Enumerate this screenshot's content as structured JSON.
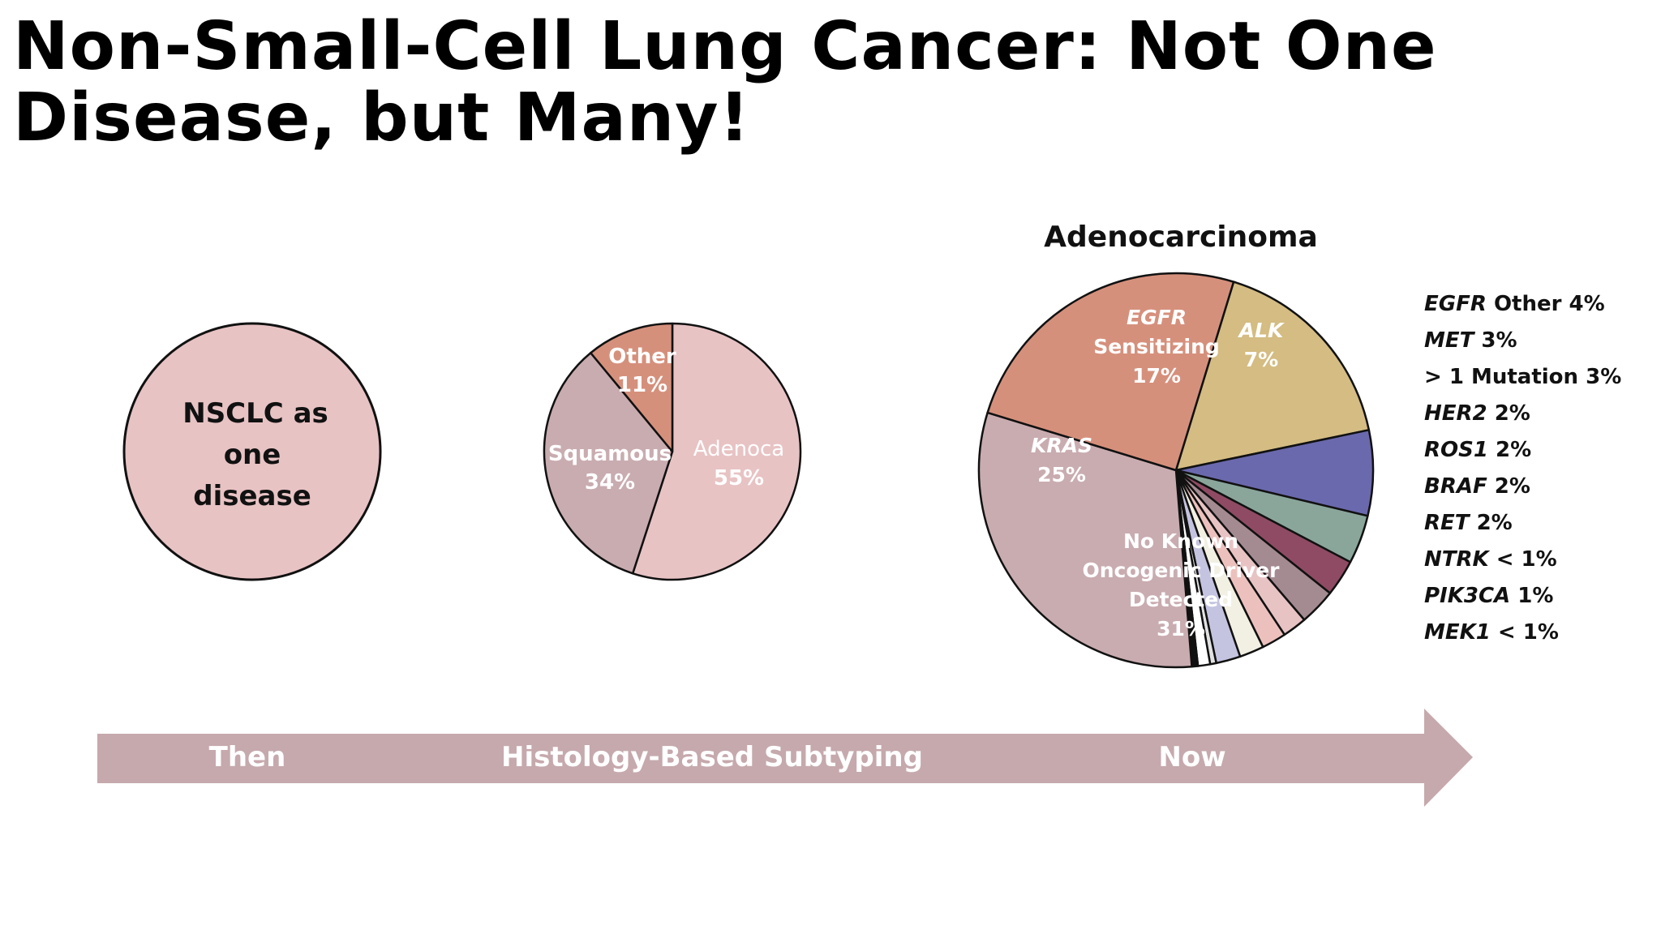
{
  "title": "Non-Small-Cell Lung Cancer: Not One Disease, but Many!",
  "colors": {
    "one_disease": "#e8c3c4",
    "adenoca": "#e8c3c4",
    "squamous": "#c9acb0",
    "other": "#d5907c",
    "arrow": "#c6a9ad"
  },
  "chart_data": [
    {
      "type": "pie",
      "id": "then",
      "slices": [
        {
          "label": "NSCLC as one disease",
          "value": 100,
          "color": "#e8c3c4"
        }
      ]
    },
    {
      "type": "pie",
      "id": "histology",
      "slices": [
        {
          "label": "Adenoca",
          "value": 55,
          "value_label": "55%",
          "color": "#e8c3c4"
        },
        {
          "label": "Squamous",
          "value": 34,
          "value_label": "34%",
          "color": "#c9acb0"
        },
        {
          "label": "Other",
          "value": 11,
          "value_label": "11%",
          "color": "#d5907c"
        }
      ]
    },
    {
      "type": "pie",
      "id": "now",
      "title": "Adenocarcinoma",
      "slices": [
        {
          "label": "EGFR Sensitizing",
          "value": 17,
          "value_label": "17%",
          "color": "#d4bc82"
        },
        {
          "label": "ALK",
          "value": 7,
          "value_label": "7%",
          "color": "#6a69ad"
        },
        {
          "label": "EGFR Other",
          "value": 4,
          "value_label": "4%",
          "color": "#8aa69b"
        },
        {
          "label": "MET",
          "value": 3,
          "value_label": "3%",
          "color": "#8f4b63"
        },
        {
          "label": "> 1 Mutation",
          "value": 3,
          "value_label": "3%",
          "color": "#a48a91"
        },
        {
          "label": "HER2",
          "value": 2,
          "value_label": "2%",
          "color": "#e8c3c4"
        },
        {
          "label": "ROS1",
          "value": 2,
          "value_label": "2%",
          "color": "#ecc1bd"
        },
        {
          "label": "BRAF",
          "value": 2,
          "value_label": "2%",
          "color": "#f2f0e3"
        },
        {
          "label": "RET",
          "value": 2,
          "value_label": "2%",
          "color": "#c4c3e0"
        },
        {
          "label": "NTRK",
          "value": 0.5,
          "value_label": "< 1%",
          "color": "#e2e2e2"
        },
        {
          "label": "PIK3CA",
          "value": 1,
          "value_label": "1%",
          "color": "#ffffff"
        },
        {
          "label": "MEK1",
          "value": 0.5,
          "value_label": "< 1%",
          "color": "#111111"
        },
        {
          "label": "No Known Oncogenic Driver Detected",
          "value": 31,
          "value_label": "31%",
          "color": "#c9acb0"
        },
        {
          "label": "KRAS",
          "value": 25,
          "value_label": "25%",
          "color": "#d5907c"
        }
      ],
      "legend": [
        {
          "gene": "EGFR",
          "rest": " Other 4%"
        },
        {
          "gene": "MET",
          "rest": " 3%"
        },
        {
          "gene": "",
          "rest": "> 1 Mutation 3%"
        },
        {
          "gene": "HER2",
          "rest": " 2%"
        },
        {
          "gene": "ROS1",
          "rest": " 2%"
        },
        {
          "gene": "BRAF",
          "rest": " 2%"
        },
        {
          "gene": "RET",
          "rest": " 2%"
        },
        {
          "gene": "NTRK",
          "rest": " < 1%"
        },
        {
          "gene": "PIK3CA",
          "rest": " 1%"
        },
        {
          "gene": "MEK1",
          "rest": " < 1%"
        }
      ]
    }
  ],
  "labels": {
    "one_disease": [
      "NSCLC as",
      "one",
      "disease"
    ],
    "other": [
      "Other",
      "11%"
    ],
    "squamous": [
      "Squamous",
      "34%"
    ],
    "adenoca": [
      "Adenoca",
      "55%"
    ],
    "egfr": [
      "EGFR",
      "Sensitizing",
      "17%"
    ],
    "alk": [
      "ALK",
      "7%"
    ],
    "kras": [
      "KRAS",
      "25%"
    ],
    "noknown": [
      "No Known",
      "Oncogenic Driver",
      "Detected",
      "31%"
    ]
  },
  "timeline": {
    "then": "Then",
    "histology": "Histology-Based Subtyping",
    "now": "Now"
  }
}
